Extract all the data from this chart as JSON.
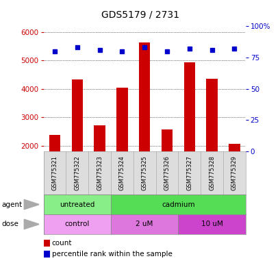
{
  "title": "GDS5179 / 2731",
  "samples": [
    "GSM775321",
    "GSM775322",
    "GSM775323",
    "GSM775324",
    "GSM775325",
    "GSM775326",
    "GSM775327",
    "GSM775328",
    "GSM775329"
  ],
  "counts": [
    2380,
    4330,
    2700,
    4050,
    5620,
    2560,
    4920,
    4360,
    2060
  ],
  "percentiles": [
    80,
    83,
    81,
    80,
    83,
    80,
    82,
    81,
    82
  ],
  "ylim_left": [
    1800,
    6200
  ],
  "ylim_right": [
    0,
    100
  ],
  "yticks_left": [
    2000,
    3000,
    4000,
    5000,
    6000
  ],
  "yticks_right": [
    0,
    25,
    50,
    75,
    100
  ],
  "bar_color": "#cc0000",
  "dot_color": "#0000cc",
  "bar_bottom": 1800,
  "agent_groups": [
    {
      "label": "untreated",
      "start": 0,
      "end": 3,
      "color": "#88ee88"
    },
    {
      "label": "cadmium",
      "start": 3,
      "end": 9,
      "color": "#55dd55"
    }
  ],
  "dose_groups": [
    {
      "label": "control",
      "start": 0,
      "end": 3,
      "color": "#f0a0f0"
    },
    {
      "label": "2 uM",
      "start": 3,
      "end": 6,
      "color": "#dd77dd"
    },
    {
      "label": "10 uM",
      "start": 6,
      "end": 9,
      "color": "#cc44cc"
    }
  ],
  "left_axis_color": "#cc0000",
  "right_axis_color": "#0000cc"
}
